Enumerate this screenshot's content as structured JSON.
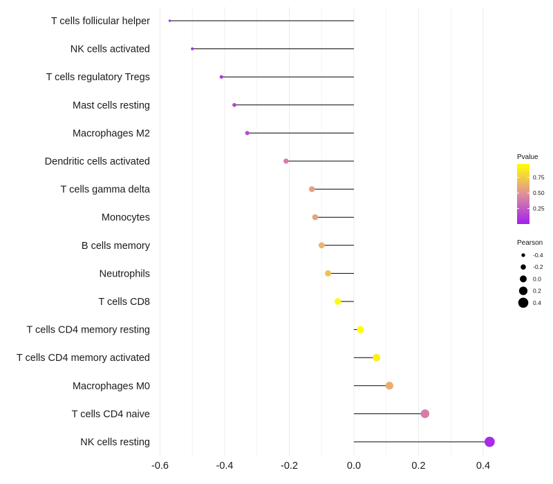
{
  "chart_data": {
    "type": "lollipop",
    "title": "",
    "xlabel": "",
    "ylabel": "",
    "xlim": [
      -0.62,
      0.45
    ],
    "x_ticks": [
      -0.6,
      -0.4,
      -0.2,
      0.0,
      0.2,
      0.4
    ],
    "x_tick_labels": [
      "-0.6",
      "-0.4",
      "-0.2",
      "0.0",
      "0.2",
      "0.4"
    ],
    "categories": [
      "T cells follicular helper",
      "NK cells activated",
      "T cells regulatory  Tregs",
      "Mast cells resting",
      "Macrophages M2",
      "Dendritic cells activated",
      "T cells gamma delta",
      "Monocytes",
      "B cells memory",
      "Neutrophils",
      "T cells CD8",
      "T cells CD4 memory resting",
      "T cells CD4 memory activated",
      "Macrophages M0",
      "T cells CD4 naive",
      "NK cells resting"
    ],
    "pearson": [
      -0.57,
      -0.5,
      -0.41,
      -0.37,
      -0.33,
      -0.21,
      -0.13,
      -0.12,
      -0.1,
      -0.08,
      -0.05,
      0.02,
      0.07,
      0.11,
      0.22,
      0.42
    ],
    "pvalue": [
      0.02,
      0.05,
      0.1,
      0.15,
      0.18,
      0.4,
      0.55,
      0.58,
      0.65,
      0.7,
      0.95,
      0.98,
      0.9,
      0.62,
      0.4,
      0.05
    ],
    "legend": {
      "color": {
        "title": "Pvalue",
        "ticks": [
          0.25,
          0.5,
          0.75
        ],
        "tick_labels": [
          "0.25",
          "0.50",
          "0.75"
        ],
        "range": [
          0.0,
          0.97
        ],
        "low_color": "#a020f0",
        "high_color": "#ffff00"
      },
      "size": {
        "title": "Pearson",
        "values": [
          -0.4,
          -0.2,
          0.0,
          0.2,
          0.4
        ],
        "labels": [
          "-0.4",
          "-0.2",
          "0.0",
          "0.2",
          "0.4"
        ]
      }
    },
    "stem_color": "#000000",
    "grid": true
  }
}
